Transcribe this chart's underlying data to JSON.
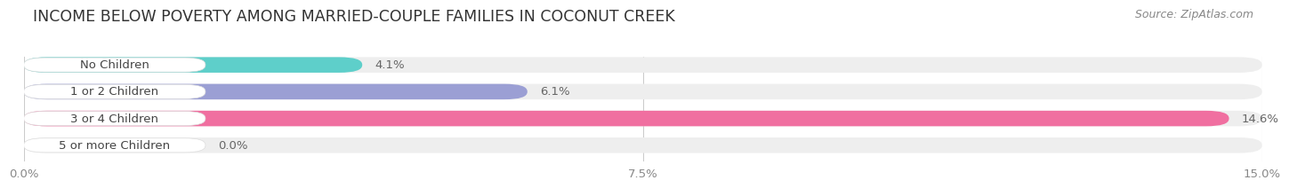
{
  "title": "INCOME BELOW POVERTY AMONG MARRIED-COUPLE FAMILIES IN COCONUT CREEK",
  "source": "Source: ZipAtlas.com",
  "categories": [
    "No Children",
    "1 or 2 Children",
    "3 or 4 Children",
    "5 or more Children"
  ],
  "values": [
    4.1,
    6.1,
    14.6,
    0.0
  ],
  "bar_colors": [
    "#5ecfca",
    "#9b9fd4",
    "#f06fa0",
    "#f5c89a"
  ],
  "xlim": [
    0,
    15.0
  ],
  "xticks": [
    0.0,
    7.5,
    15.0
  ],
  "xticklabels": [
    "0.0%",
    "7.5%",
    "15.0%"
  ],
  "background_color": "#ffffff",
  "bar_bg_color": "#eeeeee",
  "title_fontsize": 12.5,
  "source_fontsize": 9,
  "label_fontsize": 9.5,
  "value_fontsize": 9.5,
  "bar_height": 0.58
}
